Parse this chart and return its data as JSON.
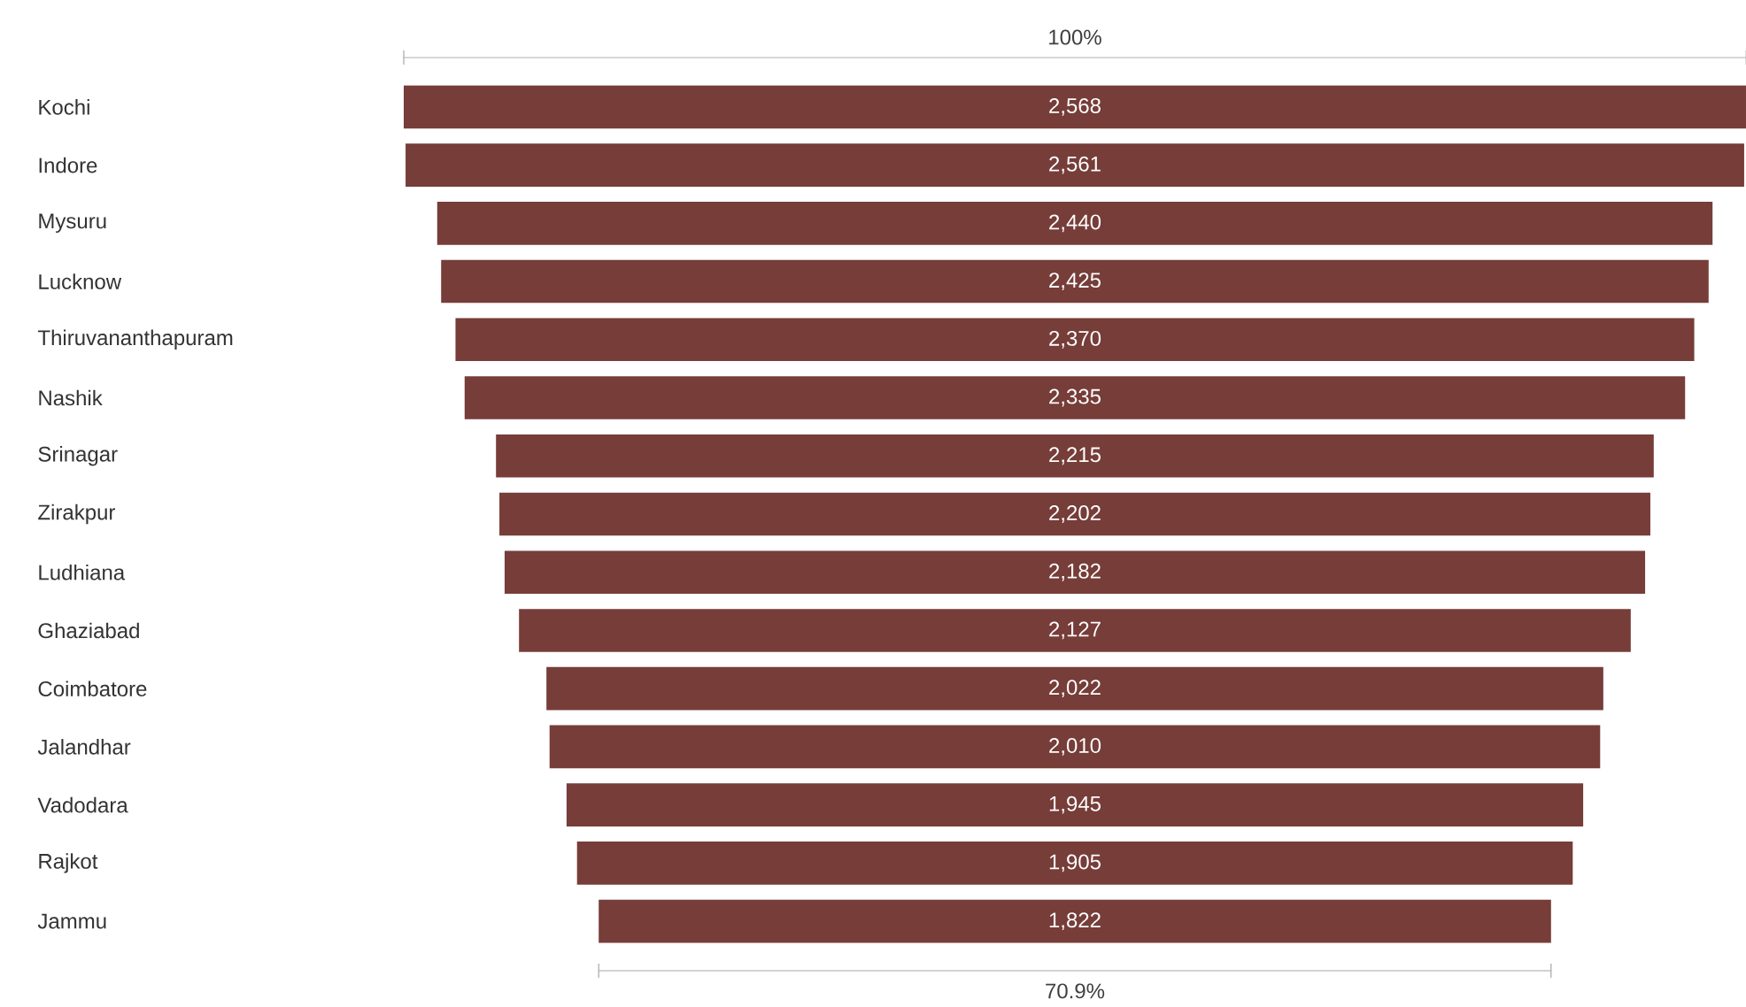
{
  "chart_data": {
    "type": "other",
    "categories": [
      "Kochi",
      "Indore",
      "Mysuru",
      "Lucknow",
      "Thiruvananthapuram",
      "Nashik",
      "Srinagar",
      "Zirakpur",
      "Ludhiana",
      "Ghaziabad",
      "Coimbatore",
      "Jalandhar",
      "Vadodara",
      "Rajkot",
      "Jammu"
    ],
    "values": [
      2568,
      2561,
      2440,
      2425,
      2370,
      2335,
      2215,
      2202,
      2182,
      2127,
      2022,
      2010,
      1945,
      1905,
      1822
    ],
    "value_labels": [
      "2,568",
      "2,561",
      "2,440",
      "2,425",
      "2,370",
      "2,335",
      "2,215",
      "2,202",
      "2,182",
      "2,127",
      "2,022",
      "2,010",
      "1,945",
      "1,905",
      "1,822"
    ],
    "color": "#763d39",
    "annotations": [
      "100%",
      "70.9%"
    ]
  }
}
